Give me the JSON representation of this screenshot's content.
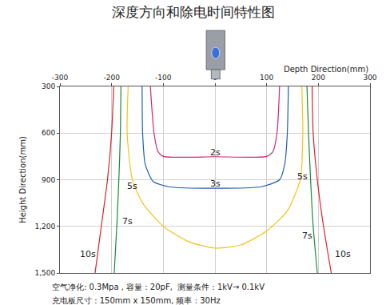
{
  "chart_data": {
    "type": "line",
    "title": "深度方向和除电时间特性图",
    "x_label": "Depth Direction(mm)",
    "y_label": "Height Direction(mm)",
    "xlim": [
      -300,
      300
    ],
    "xticks": [
      -300,
      -200,
      -100,
      0,
      100,
      200,
      300
    ],
    "ylim": [
      1500,
      300
    ],
    "yticks": [
      300,
      600,
      900,
      {
        "value": 1200,
        "label": "1,200"
      },
      {
        "value": 1500,
        "label": "1,500"
      }
    ],
    "grid": true,
    "notes": [
      "空气净化: 0.3Mpa , 容量 : 20pF,  测量条件 : 1kV→ 0.1kV",
      "充电板尺寸 : 150mm x 150mm, 频率 : 30Hz"
    ],
    "series": [
      {
        "name": "2s",
        "color": "#d6246e",
        "x": [
          -125,
          -118,
          -110,
          -100,
          0,
          100,
          112,
          120,
          125
        ],
        "y": [
          300,
          600,
          720,
          750,
          752,
          750,
          720,
          600,
          300
        ],
        "label_positions": [
          {
            "x": 0,
            "y": 725
          }
        ]
      },
      {
        "name": "3s",
        "color": "#1f5fb4",
        "x": [
          -141,
          -140,
          -135,
          -120,
          -90,
          0,
          90,
          125,
          135,
          140,
          142
        ],
        "y": [
          300,
          600,
          800,
          910,
          945,
          955,
          945,
          900,
          800,
          600,
          300
        ],
        "label_positions": [
          {
            "x": 0,
            "y": 925
          }
        ]
      },
      {
        "name": "5s",
        "color": "#f5c518",
        "x": [
          -168,
          -170,
          -160,
          -140,
          -100,
          -50,
          0,
          50,
          100,
          140,
          165,
          170,
          168
        ],
        "y": [
          300,
          600,
          900,
          1050,
          1200,
          1300,
          1340,
          1320,
          1230,
          1100,
          900,
          600,
          300
        ],
        "label_positions": [
          {
            "x": -160,
            "y": 940
          },
          {
            "x": 170,
            "y": 880
          }
        ]
      },
      {
        "name": "7s",
        "color": "#1a8a3a",
        "x": [
          -182,
          -183,
          -186,
          -190,
          -195,
          null,
          178,
          181,
          185,
          190,
          198
        ],
        "y": [
          300,
          600,
          900,
          1200,
          1500,
          null,
          300,
          600,
          900,
          1200,
          1500
        ],
        "label_positions": [
          {
            "x": -170,
            "y": 1170
          },
          {
            "x": 178,
            "y": 1260
          }
        ]
      },
      {
        "name": "10s",
        "color": "#e0202a",
        "x": [
          -196,
          -200,
          -208,
          -220,
          -232,
          null,
          188,
          190,
          198,
          210,
          225
        ],
        "y": [
          300,
          600,
          900,
          1200,
          1500,
          null,
          300,
          600,
          900,
          1200,
          1500
        ],
        "label_positions": [
          {
            "x": -246,
            "y": 1380
          },
          {
            "x": 248,
            "y": 1380
          }
        ]
      }
    ]
  }
}
